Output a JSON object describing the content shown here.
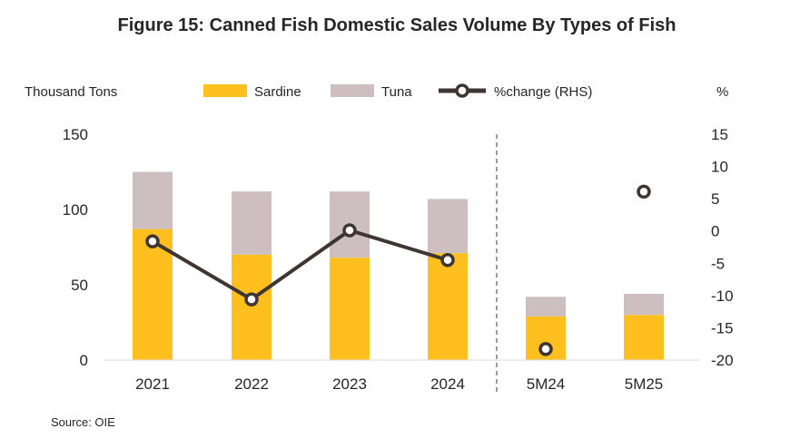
{
  "chart_data": {
    "type": "bar",
    "title": "Figure 15: Canned Fish Domestic Sales Volume By Types of Fish",
    "ylabel_left": "Thousand Tons",
    "ylabel_right": "%",
    "source": "Source: OIE",
    "categories": [
      "2021",
      "2022",
      "2023",
      "2024",
      "5M24",
      "5M25"
    ],
    "series": [
      {
        "name": "Sardine",
        "kind": "bar-stacked",
        "color": "#FFC01F",
        "values": [
          87,
          70,
          68,
          71,
          29,
          30
        ]
      },
      {
        "name": "Tuna",
        "kind": "bar-stacked",
        "color": "#CDBFBF",
        "values": [
          38,
          42,
          44,
          36,
          13,
          14
        ]
      },
      {
        "name": "%change (RHS)",
        "kind": "line",
        "axis": "right",
        "color": "#3F3532",
        "values": [
          -1.6,
          -10.6,
          0.1,
          -4.5,
          -18.3,
          6.1
        ]
      }
    ],
    "ylim_left": [
      0,
      150
    ],
    "yticks_left": [
      "0",
      "50",
      "100",
      "150"
    ],
    "ylim_right": [
      -20,
      15
    ],
    "yticks_right": [
      "-20",
      "-15",
      "-10",
      "-5",
      "0",
      "5",
      "10",
      "15"
    ],
    "line_connected_until": "2024",
    "divider_after": "2024",
    "legend_position": "top"
  }
}
